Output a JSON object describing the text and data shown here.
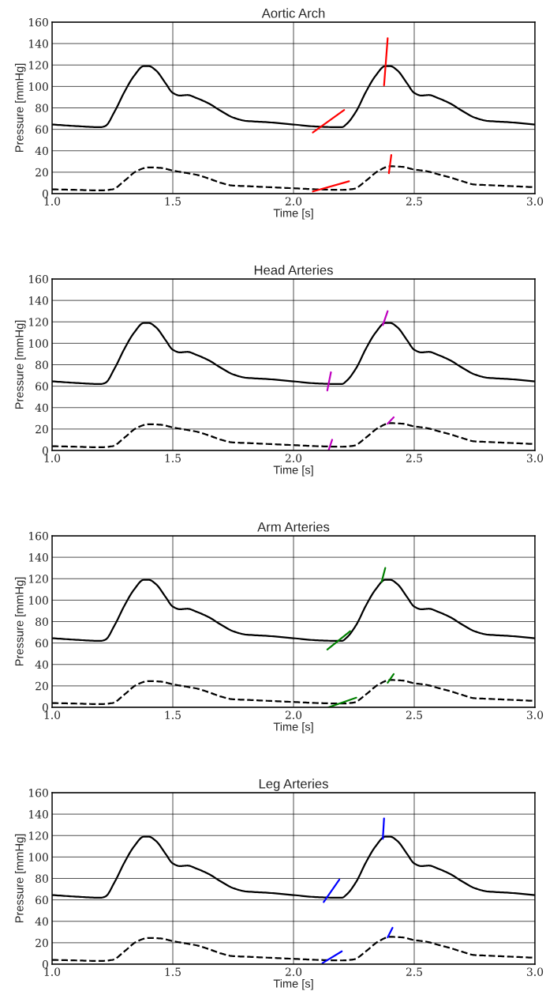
{
  "chart_data": [
    {
      "type": "line",
      "title": "Aortic Arch",
      "xlabel": "Time [s]",
      "ylabel": "Pressure [mmHg]",
      "xlim": [
        1.0,
        3.0
      ],
      "ylim": [
        0,
        160
      ],
      "xticks": [
        {
          "value": 1,
          "label": "1.0"
        },
        {
          "value": 1.5,
          "label": "1.5"
        },
        {
          "value": 2,
          "label": "2.0"
        },
        {
          "value": 2.5,
          "label": "2.5"
        },
        {
          "value": 3,
          "label": "3.0"
        }
      ],
      "yticks": [
        0,
        20,
        40,
        60,
        80,
        100,
        120,
        140,
        160
      ],
      "grid": true,
      "series": [
        {
          "color": "#000000",
          "line_style": "solid",
          "x": [
            1.0,
            1.1,
            1.2,
            1.22,
            1.26,
            1.3,
            1.34,
            1.38,
            1.4,
            1.43,
            1.47,
            1.5,
            1.53,
            1.56,
            1.6,
            1.65,
            1.7,
            1.75,
            1.8,
            1.9,
            2.0,
            2.1,
            2.18,
            2.2,
            2.22,
            2.26,
            2.3,
            2.34,
            2.38,
            2.4,
            2.43,
            2.47,
            2.5,
            2.53,
            2.56,
            2.6,
            2.65,
            2.7,
            2.75,
            2.8,
            2.9,
            3.0
          ],
          "values": [
            64.5,
            63,
            62,
            63,
            77,
            95,
            110,
            119,
            119,
            115,
            103,
            94,
            91.5,
            92,
            89,
            84,
            77,
            71,
            68,
            66.5,
            64.5,
            62.5,
            62,
            62,
            65,
            77,
            95,
            110,
            119,
            119,
            115,
            103,
            94,
            91.5,
            92,
            89,
            84,
            77,
            71,
            68,
            66.5,
            64.5
          ]
        },
        {
          "color": "#000000",
          "line_style": "dashed",
          "x": [
            1.0,
            1.1,
            1.2,
            1.25,
            1.3,
            1.35,
            1.4,
            1.45,
            1.5,
            1.55,
            1.6,
            1.65,
            1.7,
            1.75,
            1.8,
            1.9,
            2.0,
            2.1,
            2.2,
            2.25,
            2.3,
            2.35,
            2.4,
            2.45,
            2.5,
            2.55,
            2.6,
            2.65,
            2.7,
            2.75,
            2.8,
            2.9,
            3.0
          ],
          "values": [
            4,
            3.5,
            3,
            4,
            12,
            21,
            24.5,
            24,
            21.5,
            19.5,
            17.5,
            14,
            10,
            7.5,
            7,
            6,
            5,
            4,
            3.5,
            4.5,
            12,
            21,
            25.5,
            25,
            22.5,
            21,
            18,
            15,
            11.5,
            8.5,
            8,
            7,
            6
          ]
        },
        {
          "color": "#ff0000",
          "line_style": "solid",
          "x": [
            2.08,
            2.21
          ],
          "values": [
            57,
            78
          ]
        },
        {
          "color": "#ff0000",
          "line_style": "solid",
          "x": [
            2.375,
            2.39
          ],
          "values": [
            101,
            145
          ]
        },
        {
          "color": "#ff0000",
          "line_style": "solid",
          "x": [
            2.08,
            2.23
          ],
          "values": [
            2,
            11.5
          ]
        },
        {
          "color": "#ff0000",
          "line_style": "solid",
          "x": [
            2.395,
            2.405
          ],
          "values": [
            19,
            36
          ]
        }
      ]
    },
    {
      "type": "line",
      "title": "Head Arteries",
      "xlabel": "Time [s]",
      "ylabel": "Pressure [mmHg]",
      "xlim": [
        1.0,
        3.0
      ],
      "ylim": [
        0,
        160
      ],
      "xticks": [
        {
          "value": 1,
          "label": "1.0"
        },
        {
          "value": 1.5,
          "label": "1.5"
        },
        {
          "value": 2,
          "label": "2.0"
        },
        {
          "value": 2.5,
          "label": "2.5"
        },
        {
          "value": 3,
          "label": "3.0"
        }
      ],
      "yticks": [
        0,
        20,
        40,
        60,
        80,
        100,
        120,
        140,
        160
      ],
      "grid": true,
      "series": [
        {
          "color": "#000000",
          "line_style": "solid",
          "x": [
            1.0,
            1.1,
            1.2,
            1.22,
            1.26,
            1.3,
            1.34,
            1.38,
            1.4,
            1.43,
            1.47,
            1.5,
            1.53,
            1.56,
            1.6,
            1.65,
            1.7,
            1.75,
            1.8,
            1.9,
            2.0,
            2.1,
            2.18,
            2.2,
            2.22,
            2.26,
            2.3,
            2.34,
            2.38,
            2.4,
            2.43,
            2.47,
            2.5,
            2.53,
            2.56,
            2.6,
            2.65,
            2.7,
            2.75,
            2.8,
            2.9,
            3.0
          ],
          "values": [
            64.5,
            63,
            62,
            63,
            77,
            95,
            110,
            119,
            119,
            115,
            103,
            94,
            91.5,
            92,
            89,
            84,
            77,
            71,
            68,
            66.5,
            64.5,
            62.5,
            62,
            62,
            65,
            77,
            95,
            110,
            119,
            119,
            115,
            103,
            94,
            91.5,
            92,
            89,
            84,
            77,
            71,
            68,
            66.5,
            64.5
          ]
        },
        {
          "color": "#000000",
          "line_style": "dashed",
          "x": [
            1.0,
            1.1,
            1.2,
            1.25,
            1.3,
            1.35,
            1.4,
            1.45,
            1.5,
            1.55,
            1.6,
            1.65,
            1.7,
            1.75,
            1.8,
            1.9,
            2.0,
            2.1,
            2.2,
            2.25,
            2.3,
            2.35,
            2.4,
            2.45,
            2.5,
            2.55,
            2.6,
            2.65,
            2.7,
            2.75,
            2.8,
            2.9,
            3.0
          ],
          "values": [
            4,
            3.5,
            3,
            4,
            12,
            21,
            24.5,
            24,
            21.5,
            19.5,
            17.5,
            14,
            10,
            7.5,
            7,
            6,
            5,
            4,
            3.5,
            4.5,
            12,
            21,
            25.5,
            25,
            22.5,
            21,
            18,
            15,
            11.5,
            8.5,
            8,
            7,
            6
          ]
        },
        {
          "color": "#bf00bf",
          "line_style": "solid",
          "x": [
            2.14,
            2.155
          ],
          "values": [
            56,
            73
          ]
        },
        {
          "color": "#bf00bf",
          "line_style": "solid",
          "x": [
            2.37,
            2.39
          ],
          "values": [
            117,
            130
          ]
        },
        {
          "color": "#bf00bf",
          "line_style": "solid",
          "x": [
            2.145,
            2.16
          ],
          "values": [
            0,
            10
          ]
        },
        {
          "color": "#bf00bf",
          "line_style": "solid",
          "x": [
            2.39,
            2.415
          ],
          "values": [
            25,
            31
          ]
        }
      ]
    },
    {
      "type": "line",
      "title": "Arm Arteries",
      "xlabel": "Time [s]",
      "ylabel": "Pressure [mmHg]",
      "xlim": [
        1.0,
        3.0
      ],
      "ylim": [
        0,
        160
      ],
      "xticks": [
        {
          "value": 1,
          "label": "1.0"
        },
        {
          "value": 1.5,
          "label": "1.5"
        },
        {
          "value": 2,
          "label": "2.0"
        },
        {
          "value": 2.5,
          "label": "2.5"
        },
        {
          "value": 3,
          "label": "3.0"
        }
      ],
      "yticks": [
        0,
        20,
        40,
        60,
        80,
        100,
        120,
        140,
        160
      ],
      "grid": true,
      "series": [
        {
          "color": "#000000",
          "line_style": "solid",
          "x": [
            1.0,
            1.1,
            1.2,
            1.22,
            1.26,
            1.3,
            1.34,
            1.38,
            1.4,
            1.43,
            1.47,
            1.5,
            1.53,
            1.56,
            1.6,
            1.65,
            1.7,
            1.75,
            1.8,
            1.9,
            2.0,
            2.1,
            2.18,
            2.2,
            2.22,
            2.26,
            2.3,
            2.34,
            2.38,
            2.4,
            2.43,
            2.47,
            2.5,
            2.53,
            2.56,
            2.6,
            2.65,
            2.7,
            2.75,
            2.8,
            2.9,
            3.0
          ],
          "values": [
            64.5,
            63,
            62,
            63,
            77,
            95,
            110,
            119,
            119,
            115,
            103,
            94,
            91.5,
            92,
            89,
            84,
            77,
            71,
            68,
            66.5,
            64.5,
            62.5,
            62,
            62,
            65,
            77,
            95,
            110,
            119,
            119,
            115,
            103,
            94,
            91.5,
            92,
            89,
            84,
            77,
            71,
            68,
            66.5,
            64.5
          ]
        },
        {
          "color": "#000000",
          "line_style": "dashed",
          "x": [
            1.0,
            1.1,
            1.2,
            1.25,
            1.3,
            1.35,
            1.4,
            1.45,
            1.5,
            1.55,
            1.6,
            1.65,
            1.7,
            1.75,
            1.8,
            1.9,
            2.0,
            2.1,
            2.2,
            2.25,
            2.3,
            2.35,
            2.4,
            2.45,
            2.5,
            2.55,
            2.6,
            2.65,
            2.7,
            2.75,
            2.8,
            2.9,
            3.0
          ],
          "values": [
            4,
            3.5,
            3,
            4,
            12,
            21,
            24.5,
            24,
            21.5,
            19.5,
            17.5,
            14,
            10,
            7.5,
            7,
            6,
            5,
            4,
            3.5,
            4.5,
            12,
            21,
            25.5,
            25,
            22.5,
            21,
            18,
            15,
            11.5,
            8.5,
            8,
            7,
            6
          ]
        },
        {
          "color": "#008000",
          "line_style": "solid",
          "x": [
            2.14,
            2.235
          ],
          "values": [
            54,
            71
          ]
        },
        {
          "color": "#008000",
          "line_style": "solid",
          "x": [
            2.365,
            2.38
          ],
          "values": [
            117,
            130
          ]
        },
        {
          "color": "#008000",
          "line_style": "solid",
          "x": [
            2.145,
            2.26
          ],
          "values": [
            0,
            9
          ]
        },
        {
          "color": "#008000",
          "line_style": "solid",
          "x": [
            2.39,
            2.415
          ],
          "values": [
            23,
            31
          ]
        }
      ]
    },
    {
      "type": "line",
      "title": "Leg Arteries",
      "xlabel": "Time [s]",
      "ylabel": "Pressure [mmHg]",
      "xlim": [
        1.0,
        3.0
      ],
      "ylim": [
        0,
        160
      ],
      "xticks": [
        {
          "value": 1,
          "label": "1.0"
        },
        {
          "value": 1.5,
          "label": "1.5"
        },
        {
          "value": 2,
          "label": "2.0"
        },
        {
          "value": 2.5,
          "label": "2.5"
        },
        {
          "value": 3,
          "label": "3.0"
        }
      ],
      "yticks": [
        0,
        20,
        40,
        60,
        80,
        100,
        120,
        140,
        160
      ],
      "grid": true,
      "series": [
        {
          "color": "#000000",
          "line_style": "solid",
          "x": [
            1.0,
            1.1,
            1.2,
            1.22,
            1.26,
            1.3,
            1.34,
            1.38,
            1.4,
            1.43,
            1.47,
            1.5,
            1.53,
            1.56,
            1.6,
            1.65,
            1.7,
            1.75,
            1.8,
            1.9,
            2.0,
            2.1,
            2.18,
            2.2,
            2.22,
            2.26,
            2.3,
            2.34,
            2.38,
            2.4,
            2.43,
            2.47,
            2.5,
            2.53,
            2.56,
            2.6,
            2.65,
            2.7,
            2.75,
            2.8,
            2.9,
            3.0
          ],
          "values": [
            64.5,
            63,
            62,
            63,
            77,
            95,
            110,
            119,
            119,
            115,
            103,
            94,
            91.5,
            92,
            89,
            84,
            77,
            71,
            68,
            66.5,
            64.5,
            62.5,
            62,
            62,
            65,
            77,
            95,
            110,
            119,
            119,
            115,
            103,
            94,
            91.5,
            92,
            89,
            84,
            77,
            71,
            68,
            66.5,
            64.5
          ]
        },
        {
          "color": "#000000",
          "line_style": "dashed",
          "x": [
            1.0,
            1.1,
            1.2,
            1.25,
            1.3,
            1.35,
            1.4,
            1.45,
            1.5,
            1.55,
            1.6,
            1.65,
            1.7,
            1.75,
            1.8,
            1.9,
            2.0,
            2.1,
            2.2,
            2.25,
            2.3,
            2.35,
            2.4,
            2.45,
            2.5,
            2.55,
            2.6,
            2.65,
            2.7,
            2.75,
            2.8,
            2.9,
            3.0
          ],
          "values": [
            4,
            3.5,
            3,
            4,
            12,
            21,
            24.5,
            24,
            21.5,
            19.5,
            17.5,
            14,
            10,
            7.5,
            7,
            6,
            5,
            4,
            3.5,
            4.5,
            12,
            21,
            25.5,
            25,
            22.5,
            21,
            18,
            15,
            11.5,
            8.5,
            8,
            7,
            6
          ]
        },
        {
          "color": "#0000ff",
          "line_style": "solid",
          "x": [
            2.125,
            2.19
          ],
          "values": [
            58,
            79
          ]
        },
        {
          "color": "#0000ff",
          "line_style": "solid",
          "x": [
            2.37,
            2.375
          ],
          "values": [
            117,
            136
          ]
        },
        {
          "color": "#0000ff",
          "line_style": "solid",
          "x": [
            2.12,
            2.2
          ],
          "values": [
            1,
            12
          ]
        },
        {
          "color": "#0000ff",
          "line_style": "solid",
          "x": [
            2.39,
            2.41
          ],
          "values": [
            25,
            34
          ]
        }
      ]
    }
  ]
}
